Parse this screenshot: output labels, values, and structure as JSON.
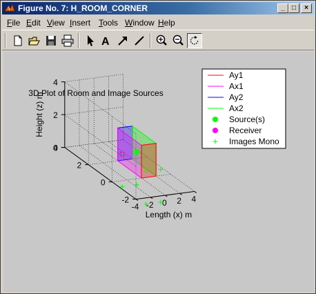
{
  "window": {
    "title": "Figure No. 7: H_ROOM_CORNER",
    "buttons": {
      "minimize": "_",
      "maximize": "□",
      "close": "×"
    }
  },
  "menu": [
    {
      "accel": "F",
      "rest": "ile"
    },
    {
      "accel": "E",
      "rest": "dit"
    },
    {
      "accel": "V",
      "rest": "iew"
    },
    {
      "accel": "I",
      "rest": "nsert"
    },
    {
      "accel": "T",
      "rest": "ools"
    },
    {
      "accel": "W",
      "rest": "indow"
    },
    {
      "accel": "H",
      "rest": "elp"
    }
  ],
  "toolbar": {
    "tools": [
      "new-file-icon",
      "open-folder-icon",
      "save-icon",
      "print-icon",
      "arrow-select-icon",
      "insert-text-icon",
      "insert-arrow-icon",
      "insert-line-icon",
      "zoom-in-icon",
      "zoom-out-icon",
      "rotate-3d-icon"
    ],
    "text_tool_label": "A"
  },
  "chart_data": {
    "type": "scatter3d",
    "title": "3D Plot of Room and Image Sources",
    "xlabel": "Length (x) m",
    "ylabel": "",
    "zlabel": "Height (z) m",
    "xlim": [
      -4,
      4
    ],
    "ylim": [
      -2,
      4
    ],
    "zlim": [
      0,
      4
    ],
    "xticks": [
      "-4",
      "-2",
      "0",
      "2",
      "4"
    ],
    "yticks": [
      "-2",
      "0",
      "2",
      "4"
    ],
    "zticks": [
      "0",
      "2",
      "4"
    ],
    "grid": true,
    "legend_position": "top-right",
    "series": [
      {
        "name": "Ay1",
        "kind": "wall",
        "color": "#ff0000"
      },
      {
        "name": "Ax1",
        "kind": "wall",
        "color": "#ff00ff"
      },
      {
        "name": "Ay2",
        "kind": "wall",
        "color": "#0000ff"
      },
      {
        "name": "Ax2",
        "kind": "wall",
        "color": "#00ff00"
      },
      {
        "name": "Source(s)",
        "kind": "marker",
        "marker": "circle",
        "color": "#00ff00",
        "points": [
          {
            "x": 1,
            "y": 1,
            "z": 1
          }
        ]
      },
      {
        "name": "Receiver",
        "kind": "marker",
        "marker": "circle",
        "color": "#ff00ff",
        "points": [
          {
            "x": -1,
            "y": 1,
            "z": 1
          }
        ]
      },
      {
        "name": "Images Mono",
        "kind": "marker",
        "marker": "plus",
        "color": "#00ff00",
        "points": [
          {
            "x": 1,
            "y": 1,
            "z": 1
          },
          {
            "x": -1,
            "y": 1,
            "z": 1
          },
          {
            "x": 1,
            "y": -1,
            "z": 1
          },
          {
            "x": -1,
            "y": -1,
            "z": 1
          },
          {
            "x": 1,
            "y": 1,
            "z": -1
          },
          {
            "x": -1,
            "y": 1,
            "z": -1
          },
          {
            "x": 1,
            "y": -1,
            "z": -1
          },
          {
            "x": -1,
            "y": -1,
            "z": -1
          }
        ]
      }
    ],
    "room": {
      "x": [
        0,
        2
      ],
      "y": [
        0,
        2
      ],
      "z": [
        0,
        2
      ]
    }
  }
}
